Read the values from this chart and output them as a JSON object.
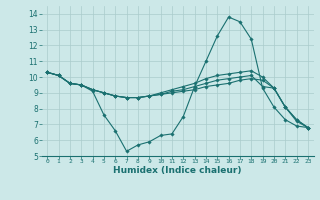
{
  "xlabel": "Humidex (Indice chaleur)",
  "xlim": [
    -0.5,
    23.5
  ],
  "ylim": [
    5,
    14.5
  ],
  "yticks": [
    5,
    6,
    7,
    8,
    9,
    10,
    11,
    12,
    13,
    14
  ],
  "xticks": [
    0,
    1,
    2,
    3,
    4,
    5,
    6,
    7,
    8,
    9,
    10,
    11,
    12,
    13,
    14,
    15,
    16,
    17,
    18,
    19,
    20,
    21,
    22,
    23
  ],
  "bg_color": "#cce8e8",
  "grid_color": "#aacccc",
  "line_color": "#1a7070",
  "lines": [
    {
      "x": [
        0,
        1,
        2,
        3,
        4,
        5,
        6,
        7,
        8,
        9,
        10,
        11,
        12,
        13,
        14,
        15,
        16,
        17,
        18,
        19,
        20,
        21,
        22,
        23
      ],
      "y": [
        10.3,
        10.1,
        9.6,
        9.5,
        9.1,
        7.6,
        6.6,
        5.3,
        5.7,
        5.9,
        6.3,
        6.4,
        7.5,
        9.4,
        11.0,
        12.6,
        13.8,
        13.5,
        12.4,
        9.3,
        8.1,
        7.3,
        6.9,
        6.8
      ]
    },
    {
      "x": [
        0,
        1,
        2,
        3,
        4,
        5,
        6,
        7,
        8,
        9,
        10,
        11,
        12,
        13,
        14,
        15,
        16,
        17,
        18,
        19,
        20,
        21,
        22,
        23
      ],
      "y": [
        10.3,
        10.1,
        9.6,
        9.5,
        9.2,
        9.0,
        8.8,
        8.7,
        8.7,
        8.8,
        8.9,
        9.1,
        9.2,
        9.4,
        9.6,
        9.8,
        9.9,
        10.0,
        10.1,
        9.4,
        9.3,
        8.1,
        7.3,
        6.8
      ]
    },
    {
      "x": [
        0,
        1,
        2,
        3,
        4,
        5,
        6,
        7,
        8,
        9,
        10,
        11,
        12,
        13,
        14,
        15,
        16,
        17,
        18,
        19,
        20,
        21,
        22,
        23
      ],
      "y": [
        10.3,
        10.1,
        9.6,
        9.5,
        9.2,
        9.0,
        8.8,
        8.7,
        8.7,
        8.8,
        9.0,
        9.2,
        9.4,
        9.6,
        9.9,
        10.1,
        10.2,
        10.3,
        10.4,
        10.0,
        9.3,
        8.1,
        7.3,
        6.8
      ]
    },
    {
      "x": [
        0,
        1,
        2,
        3,
        4,
        5,
        6,
        7,
        8,
        9,
        10,
        11,
        12,
        13,
        14,
        15,
        16,
        17,
        18,
        19,
        20,
        21,
        22,
        23
      ],
      "y": [
        10.3,
        10.1,
        9.6,
        9.5,
        9.2,
        9.0,
        8.8,
        8.7,
        8.7,
        8.8,
        8.9,
        9.0,
        9.1,
        9.2,
        9.4,
        9.5,
        9.6,
        9.8,
        9.9,
        9.8,
        9.3,
        8.1,
        7.2,
        6.8
      ]
    }
  ]
}
